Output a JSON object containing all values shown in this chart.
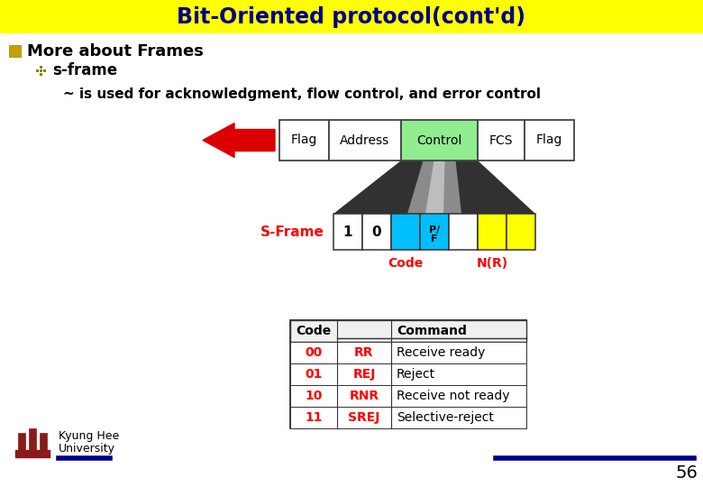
{
  "title": "Bit-Oriented protocol(cont'd)",
  "title_bg": "#FFFF00",
  "title_color": "#00008B",
  "bg_color": "#FFFFFF",
  "bullet1": "More about Frames",
  "bullet2": "s-frame",
  "bullet3": "~ is used for acknowledgment, flow control, and error control",
  "frame_labels": [
    "Flag",
    "Address",
    "Control",
    "FCS",
    "Flag"
  ],
  "frame_colors": [
    "#FFFFFF",
    "#FFFFFF",
    "#90EE90",
    "#FFFFFF",
    "#FFFFFF"
  ],
  "sframe_label": "S-Frame",
  "sframe_cell_labels": [
    "1",
    "0",
    "",
    "P/\nF",
    "",
    "",
    ""
  ],
  "sframe_cell_colors": [
    "#FFFFFF",
    "#FFFFFF",
    "#00BFFF",
    "#00BFFF",
    "#FFFFFF",
    "#FFFF00",
    "#FFFF00"
  ],
  "code_label": "Code",
  "nr_label": "N(R)",
  "table_codes": [
    "00",
    "01",
    "10",
    "11"
  ],
  "table_cmds": [
    "RR",
    "REJ",
    "RNR",
    "SREJ"
  ],
  "table_descs": [
    "Receive ready",
    "Reject",
    "Receive not ready",
    "Selective-reject"
  ],
  "page_num": "56",
  "red_color": "#FF0000",
  "dark_red": "#CC0000",
  "dark_text": "#000000",
  "bullet_color": "#8B8000",
  "bullet1_sq_color": "#C8A000",
  "arrow_color": "#DD0000",
  "funnel_dark": "#202020",
  "funnel_light": "#C0C0C0"
}
